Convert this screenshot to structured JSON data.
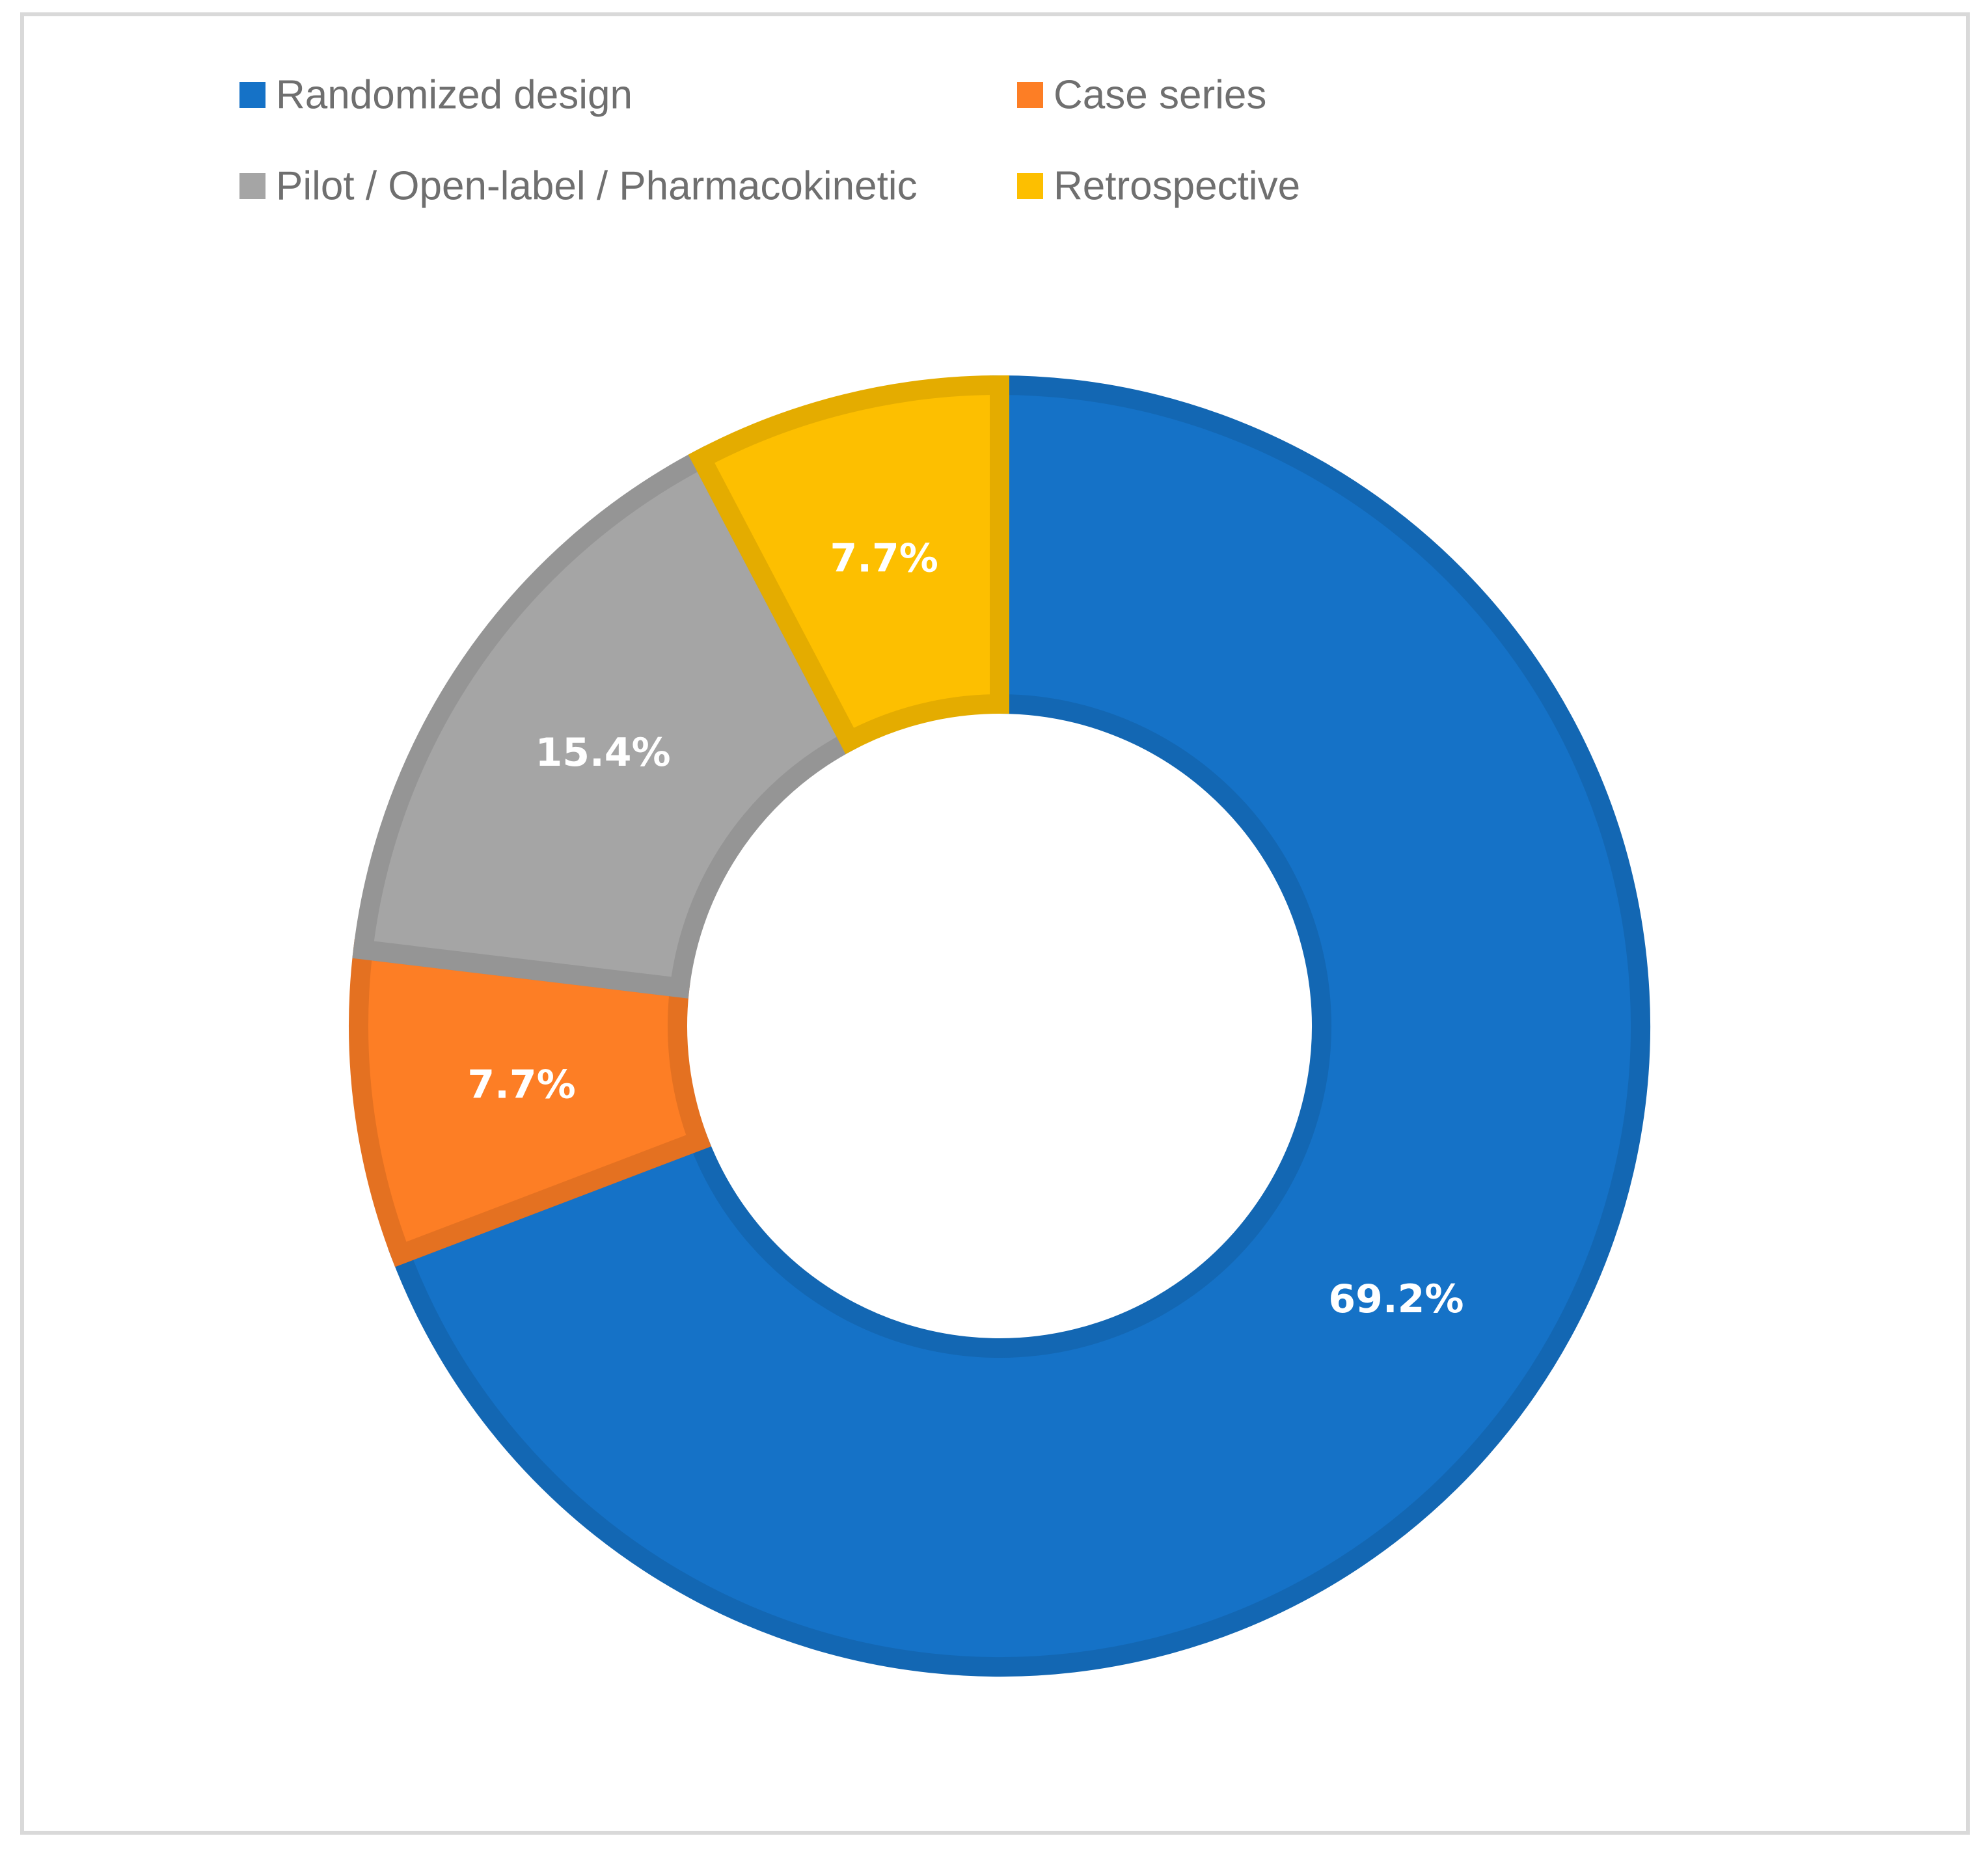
{
  "chart_data": {
    "type": "pie",
    "donut": true,
    "title": "",
    "legend_position": "top",
    "start": "12 o'clock, clockwise",
    "series": [
      {
        "name": "Randomized design",
        "value": 69.2,
        "label": "69.2%",
        "color": "#1572C7"
      },
      {
        "name": "Case series",
        "value": 7.7,
        "label": "7.7%",
        "color": "#FD7E25"
      },
      {
        "name": "Pilot / Open-label / Pharmacokinetic",
        "value": 15.4,
        "label": "15.4%",
        "color": "#A5A5A5"
      },
      {
        "name": "Retrospective",
        "value": 7.7,
        "label": "7.7%",
        "color": "#FDBF00"
      }
    ]
  }
}
